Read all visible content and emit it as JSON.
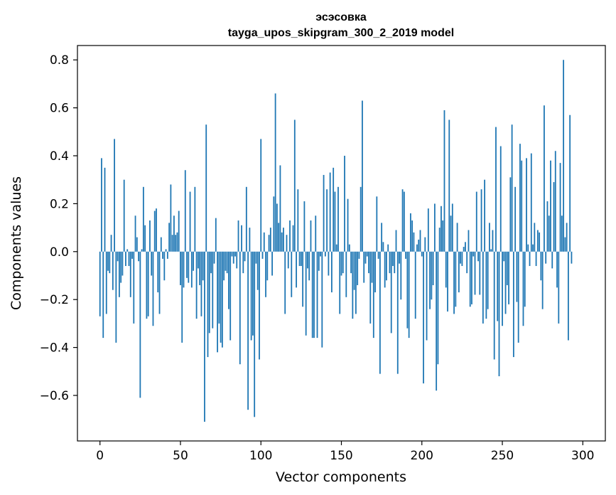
{
  "chart_data": {
    "type": "bar",
    "title": "эсэсовка",
    "subtitle": "tayga_upos_skipgram_300_2_2019 model",
    "xlabel": "Vector components",
    "ylabel": "Components values",
    "xlim": [
      -14,
      314
    ],
    "ylim": [
      -0.79,
      0.86
    ],
    "xticks": [
      0,
      50,
      100,
      150,
      200,
      250,
      300
    ],
    "xtick_labels": [
      "0",
      "50",
      "100",
      "150",
      "200",
      "250",
      "300"
    ],
    "yticks": [
      -0.6,
      -0.4,
      -0.2,
      0.0,
      0.2,
      0.4,
      0.6,
      0.8
    ],
    "ytick_labels": [
      "−0.6",
      "−0.4",
      "−0.2",
      "0.0",
      "0.2",
      "0.4",
      "0.6",
      "0.8"
    ],
    "bar_color": "#1f77b4",
    "grid": false,
    "x_start": 0,
    "values": [
      -0.27,
      0.39,
      -0.36,
      0.35,
      -0.26,
      -0.08,
      -0.09,
      0.07,
      -0.16,
      0.47,
      -0.38,
      -0.04,
      -0.19,
      -0.13,
      -0.1,
      0.3,
      -0.06,
      0.01,
      -0.06,
      -0.19,
      -0.03,
      -0.3,
      0.15,
      0.06,
      -0.04,
      -0.61,
      0.01,
      0.27,
      0.11,
      -0.28,
      -0.27,
      0.13,
      -0.1,
      -0.31,
      0.17,
      0.18,
      -0.17,
      -0.26,
      0.06,
      -0.03,
      -0.12,
      0.01,
      -0.03,
      0.12,
      0.28,
      0.07,
      0.15,
      0.07,
      0.08,
      0.17,
      -0.14,
      -0.38,
      -0.15,
      0.34,
      -0.11,
      -0.13,
      0.25,
      -0.15,
      -0.08,
      0.27,
      -0.28,
      -0.07,
      -0.14,
      -0.27,
      -0.12,
      -0.71,
      0.53,
      -0.44,
      -0.34,
      -0.09,
      -0.32,
      -0.05,
      0.14,
      -0.42,
      -0.3,
      -0.38,
      -0.4,
      -0.12,
      -0.08,
      -0.09,
      -0.24,
      -0.37,
      -0.02,
      -0.05,
      -0.02,
      -0.07,
      0.13,
      -0.47,
      0.11,
      -0.09,
      -0.04,
      0.27,
      -0.66,
      0.1,
      -0.37,
      -0.35,
      -0.69,
      -0.05,
      -0.16,
      -0.45,
      0.47,
      -0.03,
      0.08,
      -0.19,
      -0.12,
      0.07,
      0.1,
      -0.1,
      0.23,
      0.66,
      0.2,
      0.12,
      0.36,
      0.08,
      0.1,
      -0.26,
      0.07,
      -0.07,
      0.13,
      -0.19,
      0.11,
      0.55,
      -0.15,
      0.26,
      -0.06,
      -0.06,
      -0.23,
      0.21,
      -0.35,
      -0.07,
      -0.12,
      0.13,
      -0.36,
      -0.36,
      0.15,
      -0.36,
      -0.08,
      -0.02,
      -0.4,
      0.32,
      -0.02,
      0.26,
      -0.1,
      0.33,
      -0.17,
      0.35,
      0.25,
      0.03,
      0.27,
      -0.26,
      -0.1,
      -0.09,
      0.4,
      -0.19,
      0.22,
      0.03,
      -0.09,
      -0.28,
      -0.16,
      -0.26,
      -0.14,
      -0.03,
      0.27,
      0.63,
      -0.13,
      -0.05,
      -0.02,
      -0.09,
      -0.3,
      -0.13,
      -0.36,
      -0.17,
      0.23,
      -0.03,
      -0.51,
      0.12,
      0.04,
      -0.15,
      -0.12,
      0.03,
      -0.09,
      -0.34,
      -0.06,
      -0.09,
      0.09,
      -0.51,
      -0.05,
      -0.2,
      0.26,
      0.25,
      -0.03,
      -0.32,
      -0.36,
      0.16,
      0.13,
      0.08,
      -0.28,
      0.03,
      0.05,
      0.09,
      -0.02,
      -0.55,
      0.06,
      -0.37,
      0.18,
      -0.24,
      -0.2,
      -0.14,
      0.2,
      -0.58,
      -0.47,
      0.1,
      0.19,
      0.13,
      0.59,
      -0.15,
      -0.25,
      0.55,
      0.15,
      0.2,
      -0.26,
      -0.23,
      0.12,
      -0.17,
      -0.05,
      -0.06,
      0.02,
      0.04,
      -0.09,
      0.09,
      -0.23,
      -0.22,
      -0.02,
      -0.18,
      0.25,
      -0.04,
      -0.18,
      0.26,
      -0.3,
      0.3,
      -0.28,
      -0.24,
      0.12,
      0.01,
      0.09,
      -0.45,
      0.52,
      -0.29,
      -0.52,
      0.44,
      -0.31,
      -0.04,
      -0.26,
      -0.14,
      -0.22,
      0.31,
      0.53,
      -0.44,
      0.27,
      -0.21,
      -0.38,
      0.45,
      0.38,
      -0.31,
      -0.23,
      0.39,
      0.03,
      -0.06,
      0.41,
      0.03,
      0.12,
      -0.06,
      0.09,
      0.08,
      -0.12,
      -0.24,
      0.61,
      -0.05,
      0.21,
      0.15,
      0.38,
      -0.07,
      0.29,
      0.42,
      -0.15,
      -0.3,
      0.37,
      0.15,
      0.8,
      0.06,
      0.12,
      -0.37,
      0.57,
      -0.05
    ],
    "value_note": ""
  }
}
